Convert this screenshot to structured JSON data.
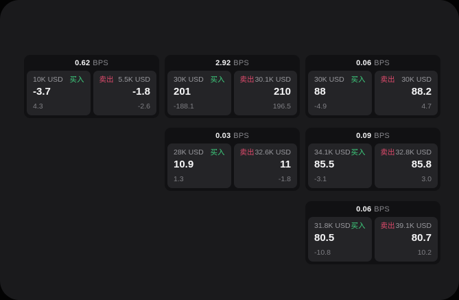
{
  "labels": {
    "bps": "BPS",
    "buy": "买入",
    "sell": "卖出"
  },
  "colors": {
    "buy": "#3ecf7e",
    "sell": "#dd4a6b",
    "panel_bg": "#1a1a1c",
    "card_bg": "#111113",
    "tile_bg": "#242427"
  },
  "cards": [
    {
      "bps": "0.62",
      "buy": {
        "size": "10K USD",
        "value": "-3.7",
        "sub": "4.3"
      },
      "sell": {
        "size": "5.5K USD",
        "value": "-1.8",
        "sub": "-2.6"
      }
    },
    {
      "bps": "2.92",
      "buy": {
        "size": "30K USD",
        "value": "201",
        "sub": "-188.1"
      },
      "sell": {
        "size": "30.1K USD",
        "value": "210",
        "sub": "196.5"
      }
    },
    {
      "bps": "0.06",
      "buy": {
        "size": "30K USD",
        "value": "88",
        "sub": "-4.9"
      },
      "sell": {
        "size": "30K USD",
        "value": "88.2",
        "sub": "4.7"
      }
    },
    {
      "bps": "0.03",
      "buy": {
        "size": "28K USD",
        "value": "10.9",
        "sub": "1.3"
      },
      "sell": {
        "size": "32.6K USD",
        "value": "11",
        "sub": "-1.8"
      }
    },
    {
      "bps": "0.09",
      "buy": {
        "size": "34.1K USD",
        "value": "85.5",
        "sub": "-3.1"
      },
      "sell": {
        "size": "32.8K USD",
        "value": "85.8",
        "sub": "3.0"
      }
    },
    {
      "bps": "0.06",
      "buy": {
        "size": "31.8K USD",
        "value": "80.5",
        "sub": "-10.8"
      },
      "sell": {
        "size": "39.1K USD",
        "value": "80.7",
        "sub": "10.2"
      }
    }
  ]
}
